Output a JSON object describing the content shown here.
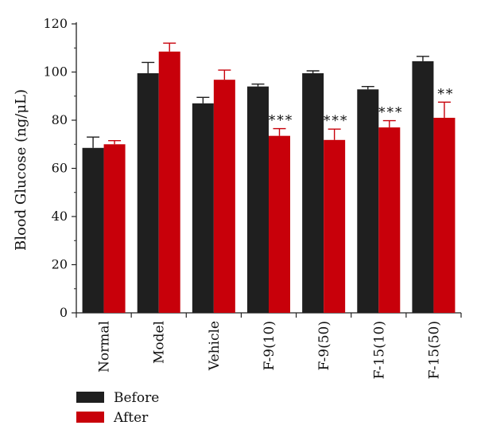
{
  "chart_data": {
    "type": "bar",
    "ylabel": "Blood Glucose (ng/μL)",
    "xlabel": "",
    "ylim": [
      0,
      120
    ],
    "yticks": [
      0,
      20,
      40,
      60,
      80,
      100,
      120
    ],
    "categories": [
      "Normal",
      "Model",
      "Vehicle",
      "F-9(10)",
      "F-9(50)",
      "F-15(10)",
      "F-15(50)"
    ],
    "series": [
      {
        "name": "Before",
        "color": "#1f1f1f",
        "values": [
          68.5,
          99.5,
          87,
          94,
          99.5,
          92.8,
          104.5
        ],
        "errors": [
          4.5,
          4.5,
          2.5,
          1,
          1,
          1.2,
          2
        ]
      },
      {
        "name": "After",
        "color": "#c8000a",
        "values": [
          70,
          108.5,
          96.8,
          73.5,
          71.8,
          77,
          81
        ],
        "errors": [
          1.5,
          3.5,
          4,
          3,
          4.5,
          2.8,
          6.5
        ]
      }
    ],
    "annotations": [
      "",
      "",
      "",
      "***",
      "***",
      "***",
      "**"
    ],
    "legend": {
      "position": "bottom-left"
    }
  }
}
